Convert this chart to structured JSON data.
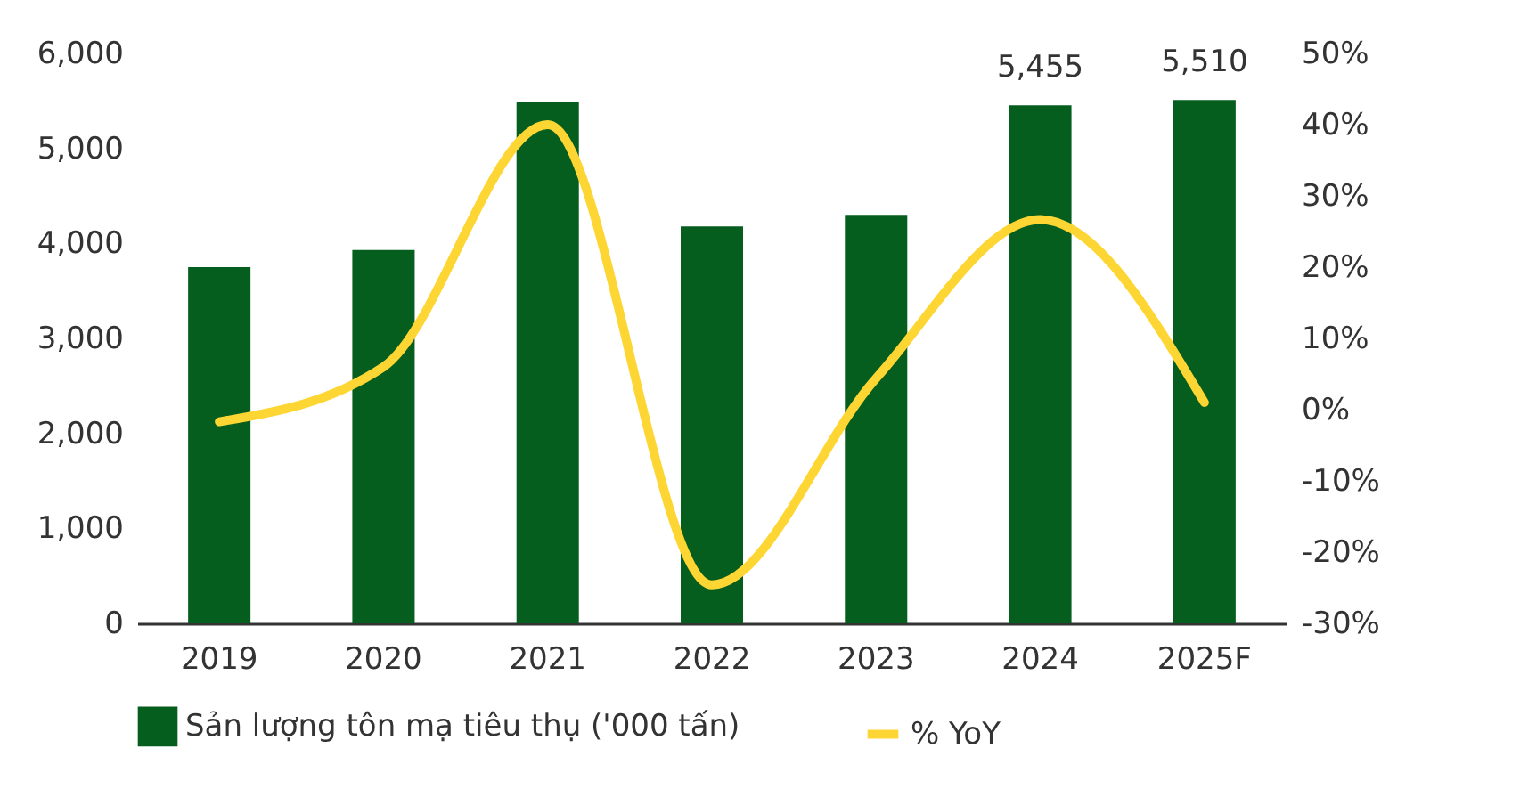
{
  "chart_data": {
    "type": "bar",
    "categories": [
      "2019",
      "2020",
      "2021",
      "2022",
      "2023",
      "2024",
      "2025F"
    ],
    "series": [
      {
        "name": "Sản lượng tôn mạ tiêu thụ ('000 tấn)",
        "color": "#065e1e",
        "values": [
          3750,
          3930,
          5490,
          4180,
          4300,
          5455,
          5510
        ],
        "value_labels": [
          null,
          null,
          null,
          null,
          null,
          "5,455",
          "5,510"
        ]
      },
      {
        "name": "% YoY",
        "type": "line",
        "axis": "y2",
        "color": "#fdd634",
        "values": [
          -1.7,
          6,
          40,
          -24.6,
          4.4,
          26.7,
          1
        ]
      }
    ],
    "ylim": [
      0,
      6000
    ],
    "yticks": [
      0,
      {
        "value": 1000,
        "label": "1,000"
      },
      {
        "value": 2000,
        "label": "2,000"
      },
      {
        "value": 3000,
        "label": "3,000"
      },
      {
        "value": 4000,
        "label": "4,000"
      },
      {
        "value": 5000,
        "label": "5,000"
      },
      {
        "value": 6000,
        "label": "6,000"
      }
    ],
    "y2lim": [
      -30,
      50
    ],
    "y2ticks": [
      {
        "value": -30,
        "label": "-30%"
      },
      {
        "value": -20,
        "label": "-20%"
      },
      {
        "value": -10,
        "label": "-10%"
      },
      {
        "value": 0,
        "label": "0%"
      },
      {
        "value": 10,
        "label": "10%"
      },
      {
        "value": 20,
        "label": "20%"
      },
      {
        "value": 30,
        "label": "30%"
      },
      {
        "value": 40,
        "label": "40%"
      },
      {
        "value": 50,
        "label": "50%"
      }
    ],
    "grid": false,
    "legend": "bottom",
    "marker": "none",
    "line_style": "solid"
  }
}
